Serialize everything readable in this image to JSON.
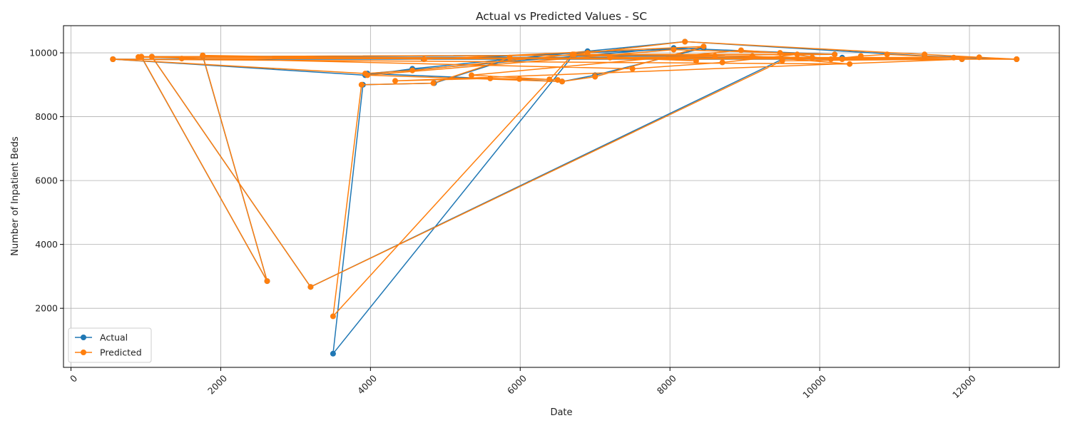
{
  "chart_data": {
    "type": "line",
    "title": "Actual vs Predicted Values - SC",
    "xlabel": "Date",
    "ylabel": "Number of Inpatient Beds",
    "xlim": [
      -100,
      13200
    ],
    "ylim": [
      150,
      10850
    ],
    "x_ticks": [
      0,
      2000,
      4000,
      6000,
      8000,
      10000,
      12000
    ],
    "y_ticks": [
      2000,
      4000,
      6000,
      8000,
      10000
    ],
    "x_tick_rotation": 45,
    "grid": true,
    "legend_position": "lower-left",
    "series": [
      {
        "name": "Actual",
        "color": "#1f77b4",
        "points": [
          [
            560,
            9800
          ],
          [
            3930,
            9300
          ],
          [
            4560,
            9500
          ],
          [
            6900,
            10050
          ],
          [
            8200,
            10350
          ],
          [
            11400,
            9900
          ],
          [
            12630,
            9800
          ],
          [
            9900,
            9850
          ],
          [
            8600,
            9900
          ],
          [
            6700,
            9900
          ],
          [
            3500,
            580
          ],
          [
            3900,
            9000
          ],
          [
            4850,
            9050
          ],
          [
            5850,
            9800
          ],
          [
            10300,
            9850
          ],
          [
            940,
            9870
          ],
          [
            2620,
            2850
          ],
          [
            1760,
            9900
          ],
          [
            4710,
            9800
          ],
          [
            8450,
            10150
          ],
          [
            7000,
            9300
          ],
          [
            6560,
            9100
          ],
          [
            3960,
            9350
          ],
          [
            8050,
            10150
          ],
          [
            10200,
            9950
          ],
          [
            1080,
            9880
          ],
          [
            3200,
            2670
          ],
          [
            9500,
            9800
          ],
          [
            11900,
            9800
          ],
          [
            560,
            9800
          ]
        ]
      },
      {
        "name": "Predicted",
        "color": "#ff7f0e",
        "points": [
          [
            560,
            9800
          ],
          [
            3930,
            9350
          ],
          [
            4560,
            9450
          ],
          [
            6900,
            10000
          ],
          [
            8200,
            10350
          ],
          [
            11400,
            9950
          ],
          [
            12630,
            9800
          ],
          [
            9900,
            9850
          ],
          [
            8600,
            9900
          ],
          [
            6700,
            9950
          ],
          [
            3500,
            1750
          ],
          [
            3880,
            9000
          ],
          [
            4840,
            9050
          ],
          [
            5860,
            9850
          ],
          [
            10300,
            9800
          ],
          [
            940,
            9880
          ],
          [
            2620,
            2850
          ],
          [
            1760,
            9920
          ],
          [
            4720,
            9800
          ],
          [
            8450,
            10200
          ],
          [
            7000,
            9250
          ],
          [
            6560,
            9100
          ],
          [
            3960,
            9300
          ],
          [
            8050,
            10100
          ],
          [
            10200,
            9950
          ],
          [
            1080,
            9880
          ],
          [
            3200,
            2670
          ],
          [
            9500,
            9750
          ],
          [
            11900,
            9800
          ],
          [
            4330,
            9120
          ],
          [
            5600,
            9200
          ],
          [
            5990,
            9180
          ],
          [
            6390,
            9170
          ],
          [
            6500,
            9150
          ],
          [
            5350,
            9300
          ],
          [
            8950,
            10080
          ],
          [
            9470,
            10000
          ],
          [
            10150,
            9800
          ],
          [
            10550,
            9900
          ],
          [
            10900,
            9950
          ],
          [
            11790,
            9850
          ],
          [
            12130,
            9860
          ],
          [
            1480,
            9820
          ],
          [
            12630,
            9800
          ],
          [
            900,
            9870
          ],
          [
            7500,
            9500
          ],
          [
            8700,
            9700
          ],
          [
            9700,
            9950
          ],
          [
            6720,
            9950
          ],
          [
            8350,
            9750
          ],
          [
            7200,
            9850
          ],
          [
            9100,
            9900
          ],
          [
            10400,
            9650
          ],
          [
            560,
            9800
          ]
        ]
      }
    ]
  }
}
